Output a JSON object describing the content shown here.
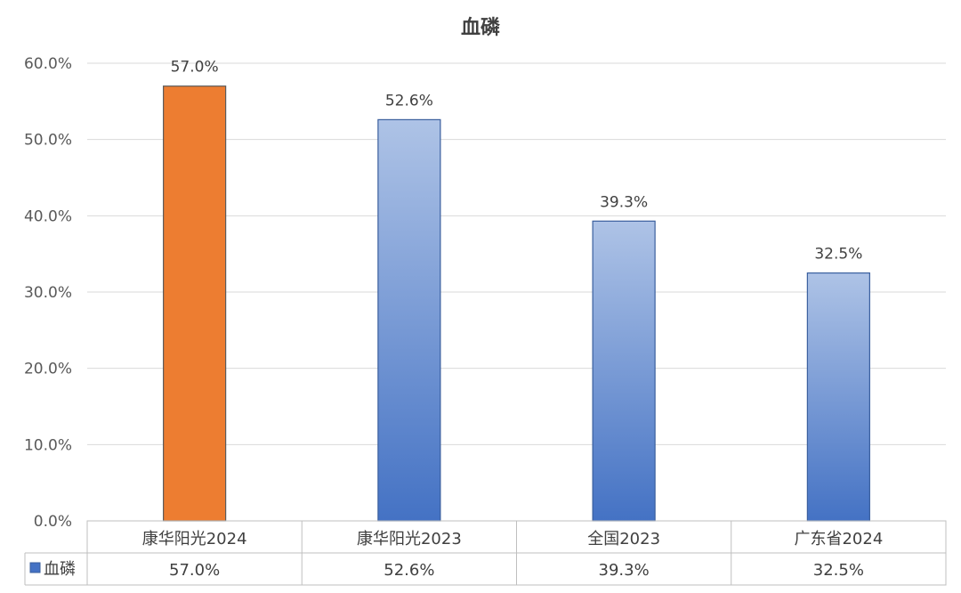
{
  "chart_data": {
    "type": "bar",
    "title": "血磷",
    "categories": [
      "康华阳光2024",
      "康华阳光2023",
      "全国2023",
      "广东省2024"
    ],
    "series": [
      {
        "name": "血磷",
        "values": [
          57.0,
          52.6,
          39.3,
          32.5
        ]
      }
    ],
    "value_labels": [
      "57.0%",
      "52.6%",
      "39.3%",
      "32.5%"
    ],
    "table_values": [
      "57.0%",
      "52.6%",
      "39.3%",
      "32.5%"
    ],
    "y_ticks": [
      "0.0%",
      "10.0%",
      "20.0%",
      "30.0%",
      "40.0%",
      "50.0%",
      "60.0%"
    ],
    "ylim": [
      0,
      60
    ],
    "grid": true,
    "legend": "data-table",
    "colors": {
      "highlight": "#ed7d31",
      "bar_top": "#aec3e6",
      "bar_bottom": "#4472c4",
      "bar_edge": "#3a5f9e"
    }
  }
}
